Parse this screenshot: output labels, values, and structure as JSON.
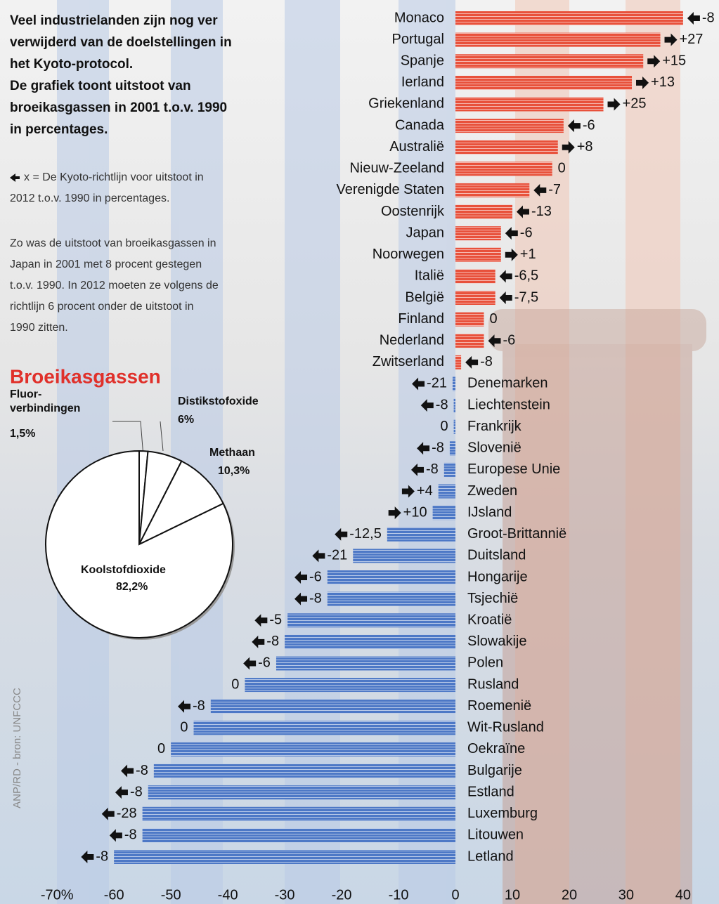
{
  "intro": [
    "Veel industrielanden zijn nog ver",
    "verwijderd van de doelstellingen in",
    "het Kyoto-protocol.",
    "De grafiek toont uitstoot van",
    "broeikasgassen in 2001 t.o.v. 1990",
    "in percentages."
  ],
  "legend_note": [
    "x = De Kyoto-richtlijn voor uitstoot in",
    "2012 t.o.v. 1990 in percentages."
  ],
  "example": [
    "Zo was de uitstoot van broeikasgassen in",
    "Japan in 2001 met 8 procent gestegen",
    "t.o.v. 1990. In 2012 moeten ze volgens de",
    "richtlijn 6 procent onder de uitstoot in",
    "1990 zitten."
  ],
  "source": "ANP/RD - bron: UNFCCC",
  "chart_data": [
    {
      "type": "bar",
      "orientation": "horizontal",
      "categories": [
        "Monaco",
        "Portugal",
        "Spanje",
        "Ierland",
        "Griekenland",
        "Canada",
        "Australië",
        "Nieuw-Zeeland",
        "Verenigde Staten",
        "Oostenrijk",
        "Japan",
        "Noorwegen",
        "Italië",
        "België",
        "Finland",
        "Nederland",
        "Zwitserland",
        "Denemarken",
        "Liechtenstein",
        "Frankrijk",
        "Slovenië",
        "Europese Unie",
        "Zweden",
        "IJsland",
        "Groot-Brittannië",
        "Duitsland",
        "Hongarije",
        "Tsjechië",
        "Kroatië",
        "Slowakije",
        "Polen",
        "Rusland",
        "Roemenië",
        "Wit-Rusland",
        "Oekraïne",
        "Bulgarije",
        "Estland",
        "Luxemburg",
        "Litouwen",
        "Letland"
      ],
      "values": [
        40,
        36,
        33,
        31,
        26,
        19,
        18,
        17,
        13,
        10,
        8,
        8,
        7,
        7,
        5,
        5,
        1,
        -0.5,
        -0.3,
        -0.3,
        -1,
        -2,
        -3,
        -4,
        -12,
        -18,
        -22.5,
        -22.5,
        -29.5,
        -30,
        -31.5,
        -37,
        -43,
        -46,
        -50,
        -53,
        -54,
        -55,
        -55,
        -60
      ],
      "kyoto_labels": [
        "-8",
        "+27",
        "+15",
        "+13",
        "+25",
        "-6",
        "+8",
        "0",
        "-7",
        "-13",
        "-6",
        "+1",
        "-6,5",
        "-7,5",
        "0",
        "-6",
        "-8",
        "-21",
        "-8",
        "0",
        "-8",
        "-8",
        "+4",
        "+10",
        "-12,5",
        "-21",
        "-6",
        "-8",
        "-5",
        "-8",
        "-6",
        "0",
        "-8",
        "0",
        "0",
        "-8",
        "-8",
        "-28",
        "-8",
        "-8"
      ],
      "positive_color": "#e8513b",
      "negative_color": "#4d78c6",
      "xlim": [
        -72,
        41
      ],
      "xticks": [
        {
          "value": -70,
          "label": "-70%"
        },
        -60,
        -50,
        -40,
        -30,
        -20,
        -10,
        0,
        10,
        20,
        30,
        40
      ]
    },
    {
      "type": "pie",
      "title": "Broeikasgassen",
      "categories": [
        "Fluor-\nverbindingen",
        "Distikstofoxide",
        "Methaan",
        "Koolstofdioxide"
      ],
      "values": [
        1.5,
        6,
        10.3,
        82.2
      ],
      "value_labels": [
        "1,5%",
        "6%",
        "10,3%",
        "82,2%"
      ]
    }
  ]
}
